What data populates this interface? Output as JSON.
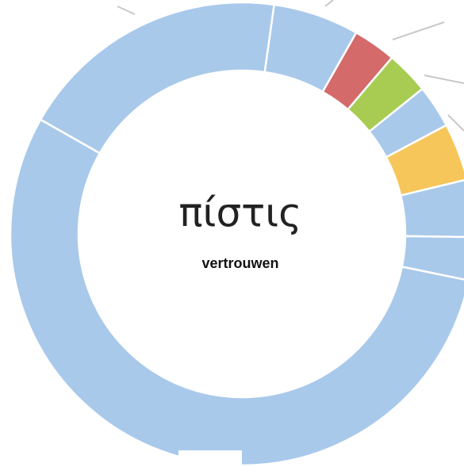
{
  "chart_data": {
    "type": "donut",
    "title": "πίστις",
    "subtitle": "vertrouwen",
    "values": [
      6,
      3,
      3,
      3,
      4,
      4,
      3,
      55,
      19
    ],
    "colors": [
      "#a9c9eb",
      "#d46a6a",
      "#a8cc52",
      "#a9c9eb",
      "#f6c65b",
      "#a9c9eb",
      "#a9c9eb",
      "#a9c9eb",
      "#a9c9eb"
    ]
  }
}
